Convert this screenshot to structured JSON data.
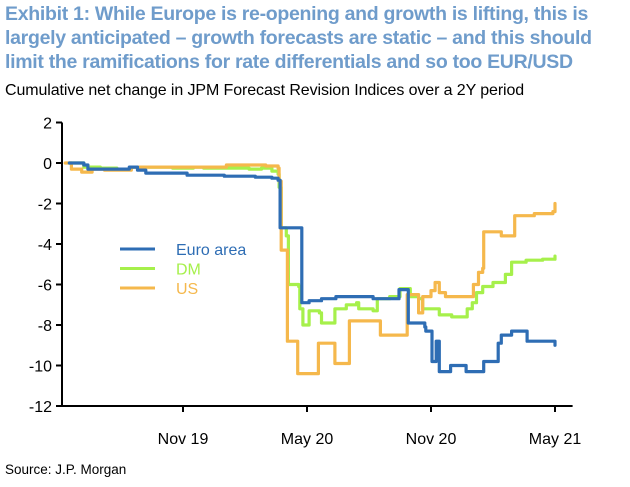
{
  "title": "Exhibit 1: While Europe is re-opening and growth is lifting, this is largely anticipated – growth forecasts are static – and this should limit the ramifications for rate differentials and so too EUR/USD",
  "subtitle": "Cumulative net change in JPM Forecast Revision Indices over a 2Y period",
  "source": "Source: J.P. Morgan",
  "chart_data": {
    "type": "line",
    "title": "Cumulative net change in JPM Forecast Revision Indices over a 2Y period",
    "xlabel": "",
    "ylabel": "",
    "x_unit": "months relative to Nov 2019",
    "xlim": [
      -5.9,
      18.9
    ],
    "ylim": [
      -12,
      2
    ],
    "yticks": [
      2,
      0,
      -2,
      -4,
      -6,
      -8,
      -10,
      -12
    ],
    "xticks": [
      {
        "value": 0,
        "label": "Nov 19"
      },
      {
        "value": 6,
        "label": "May 20"
      },
      {
        "value": 12,
        "label": "Nov 20"
      },
      {
        "value": 18,
        "label": "May 21"
      }
    ],
    "grid": false,
    "legend_position": "center-left",
    "series": [
      {
        "name": "Euro area",
        "color": "#2e6db4",
        "step": true,
        "points": [
          [
            -5.5,
            0.0
          ],
          [
            -4.8,
            -0.1
          ],
          [
            -4.6,
            -0.3
          ],
          [
            -3.2,
            -0.3
          ],
          [
            -2.6,
            -0.2
          ],
          [
            -2.2,
            -0.35
          ],
          [
            -1.8,
            -0.5
          ],
          [
            -0.3,
            -0.5
          ],
          [
            0.2,
            -0.6
          ],
          [
            1.0,
            -0.6
          ],
          [
            2.0,
            -0.65
          ],
          [
            3.5,
            -0.7
          ],
          [
            4.3,
            -0.75
          ],
          [
            4.6,
            -0.85
          ],
          [
            4.7,
            -3.2
          ],
          [
            5.7,
            -3.2
          ],
          [
            5.75,
            -6.9
          ],
          [
            6.1,
            -6.8
          ],
          [
            6.7,
            -6.7
          ],
          [
            7.4,
            -6.6
          ],
          [
            8.8,
            -6.6
          ],
          [
            9.2,
            -6.7
          ],
          [
            10.4,
            -6.7
          ],
          [
            10.45,
            -6.25
          ],
          [
            10.85,
            -6.25
          ],
          [
            10.9,
            -7.9
          ],
          [
            11.7,
            -8.1
          ],
          [
            11.75,
            -8.3
          ],
          [
            12.0,
            -8.3
          ],
          [
            12.05,
            -9.8
          ],
          [
            12.2,
            -9.8
          ],
          [
            12.25,
            -8.8
          ],
          [
            12.35,
            -8.8
          ],
          [
            12.4,
            -10.3
          ],
          [
            12.9,
            -10.3
          ],
          [
            12.95,
            -10.0
          ],
          [
            13.6,
            -10.0
          ],
          [
            13.7,
            -10.3
          ],
          [
            14.5,
            -10.3
          ],
          [
            14.55,
            -9.8
          ],
          [
            15.2,
            -9.8
          ],
          [
            15.25,
            -8.9
          ],
          [
            15.4,
            -8.5
          ],
          [
            15.9,
            -8.3
          ],
          [
            16.6,
            -8.3
          ],
          [
            16.65,
            -8.8
          ],
          [
            17.9,
            -8.8
          ],
          [
            18.0,
            -9.0
          ]
        ]
      },
      {
        "name": "DM",
        "color": "#a6f04b",
        "step": true,
        "points": [
          [
            -5.5,
            0.0
          ],
          [
            -4.8,
            -0.2
          ],
          [
            -4.0,
            -0.25
          ],
          [
            -3.2,
            -0.3
          ],
          [
            -2.5,
            -0.2
          ],
          [
            -0.5,
            -0.25
          ],
          [
            0.5,
            -0.2
          ],
          [
            1.0,
            -0.25
          ],
          [
            3.2,
            -0.3
          ],
          [
            3.8,
            -0.25
          ],
          [
            4.3,
            -0.4
          ],
          [
            4.6,
            -0.55
          ],
          [
            4.65,
            -1.2
          ],
          [
            4.75,
            -3.2
          ],
          [
            5.0,
            -3.6
          ],
          [
            5.1,
            -6.0
          ],
          [
            5.6,
            -6.1
          ],
          [
            5.65,
            -7.2
          ],
          [
            5.8,
            -8.0
          ],
          [
            6.1,
            -7.3
          ],
          [
            6.6,
            -7.4
          ],
          [
            6.7,
            -7.9
          ],
          [
            7.3,
            -7.9
          ],
          [
            7.35,
            -7.2
          ],
          [
            7.9,
            -7.0
          ],
          [
            8.4,
            -6.9
          ],
          [
            8.5,
            -7.2
          ],
          [
            9.2,
            -7.3
          ],
          [
            9.4,
            -6.7
          ],
          [
            10.0,
            -6.6
          ],
          [
            10.45,
            -6.6
          ],
          [
            10.5,
            -6.2
          ],
          [
            10.9,
            -6.2
          ],
          [
            11.0,
            -6.6
          ],
          [
            11.4,
            -6.7
          ],
          [
            11.6,
            -7.2
          ],
          [
            12.4,
            -7.5
          ],
          [
            13.0,
            -7.6
          ],
          [
            13.7,
            -7.6
          ],
          [
            13.75,
            -7.2
          ],
          [
            14.0,
            -6.9
          ],
          [
            14.2,
            -6.4
          ],
          [
            14.5,
            -6.1
          ],
          [
            15.0,
            -5.9
          ],
          [
            15.6,
            -5.5
          ],
          [
            15.8,
            -5.5
          ],
          [
            15.9,
            -4.9
          ],
          [
            16.6,
            -4.8
          ],
          [
            17.4,
            -4.75
          ],
          [
            18.0,
            -4.6
          ]
        ]
      },
      {
        "name": "US",
        "color": "#f5b84c",
        "step": true,
        "points": [
          [
            -5.7,
            0.0
          ],
          [
            -5.4,
            -0.3
          ],
          [
            -4.9,
            -0.45
          ],
          [
            -4.4,
            -0.3
          ],
          [
            -3.8,
            -0.35
          ],
          [
            -2.9,
            -0.35
          ],
          [
            -2.5,
            -0.2
          ],
          [
            1.8,
            -0.2
          ],
          [
            2.1,
            -0.1
          ],
          [
            4.0,
            -0.15
          ],
          [
            4.6,
            -0.25
          ],
          [
            4.65,
            -0.9
          ],
          [
            4.75,
            -4.3
          ],
          [
            5.0,
            -4.3
          ],
          [
            5.05,
            -8.8
          ],
          [
            5.5,
            -8.8
          ],
          [
            5.55,
            -10.4
          ],
          [
            6.5,
            -10.4
          ],
          [
            6.55,
            -8.9
          ],
          [
            7.3,
            -8.9
          ],
          [
            7.35,
            -9.9
          ],
          [
            8.0,
            -9.9
          ],
          [
            8.05,
            -7.8
          ],
          [
            9.5,
            -7.8
          ],
          [
            9.55,
            -8.5
          ],
          [
            10.8,
            -8.5
          ],
          [
            10.85,
            -6.5
          ],
          [
            11.35,
            -6.5
          ],
          [
            11.4,
            -7.4
          ],
          [
            11.55,
            -7.4
          ],
          [
            11.6,
            -6.6
          ],
          [
            12.0,
            -6.3
          ],
          [
            12.2,
            -5.9
          ],
          [
            12.4,
            -6.4
          ],
          [
            12.7,
            -6.6
          ],
          [
            14.0,
            -6.6
          ],
          [
            14.05,
            -6.0
          ],
          [
            14.3,
            -5.4
          ],
          [
            14.5,
            -5.2
          ],
          [
            14.55,
            -3.4
          ],
          [
            15.3,
            -3.4
          ],
          [
            15.4,
            -3.6
          ],
          [
            16.0,
            -3.6
          ],
          [
            16.05,
            -2.6
          ],
          [
            17.0,
            -2.5
          ],
          [
            17.9,
            -2.4
          ],
          [
            18.0,
            -2.0
          ]
        ]
      }
    ]
  }
}
